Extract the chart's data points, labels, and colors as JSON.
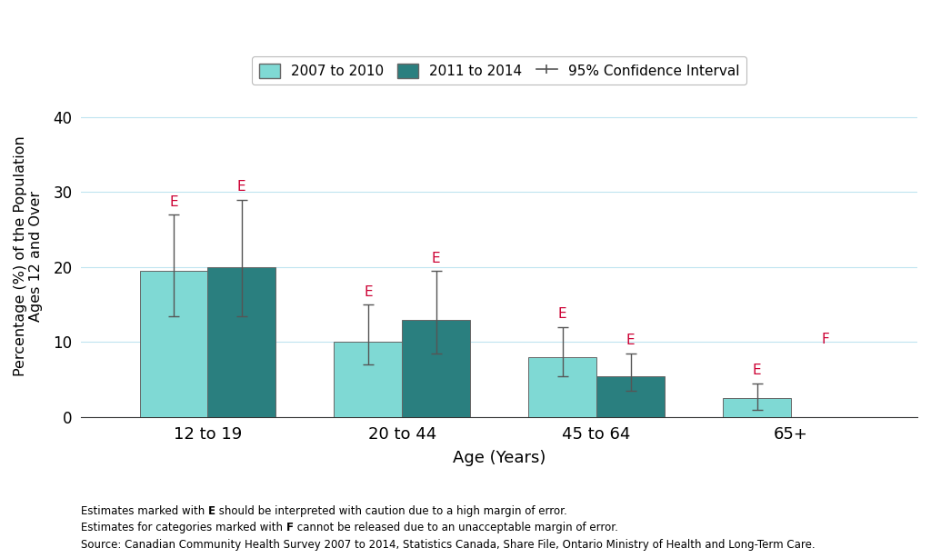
{
  "categories": [
    "12 to 19",
    "20 to 44",
    "45 to 64",
    "65+"
  ],
  "series_2007_2010": [
    19.5,
    10.0,
    8.0,
    2.5
  ],
  "series_2011_2014": [
    20.0,
    13.0,
    5.5,
    null
  ],
  "ci_2007_2010_lower": [
    13.5,
    7.0,
    5.5,
    1.0
  ],
  "ci_2007_2010_upper": [
    27.0,
    15.0,
    12.0,
    4.5
  ],
  "ci_2011_2014_lower": [
    13.5,
    8.5,
    3.5,
    null
  ],
  "ci_2011_2014_upper": [
    29.0,
    19.5,
    8.5,
    null
  ],
  "color_2007_2010": "#7FD9D4",
  "color_2011_2014": "#2A7F7F",
  "bar_edge_color": "#666666",
  "ci_color": "#555555",
  "e_labels_2007_2010": [
    true,
    true,
    true,
    true
  ],
  "e_labels_2011_2014": [
    true,
    true,
    true,
    false
  ],
  "f_labels_2011_2014": [
    false,
    false,
    false,
    true
  ],
  "xlabel": "Age (Years)",
  "ylabel": "Percentage (%) of the Population\nAges 12 and Over",
  "ylim": [
    0,
    43
  ],
  "yticks": [
    0,
    10,
    20,
    30,
    40
  ],
  "legend_label_1": "2007 to 2010",
  "legend_label_2": "2011 to 2014",
  "legend_label_3": "95% Confidence Interval",
  "bar_width": 0.35,
  "footnote1_a": "Estimates marked with ",
  "footnote1_b": "E",
  "footnote1_c": " should be interpreted with caution due to a high margin of error.",
  "footnote2_a": "Estimates for categories marked with ",
  "footnote2_b": "F",
  "footnote2_c": " cannot be released due to an unacceptable margin of error.",
  "footnote3": "Source: Canadian Community Health Survey 2007 to 2014, Statistics Canada, Share File, Ontario Ministry of Health and Long-Term Care."
}
